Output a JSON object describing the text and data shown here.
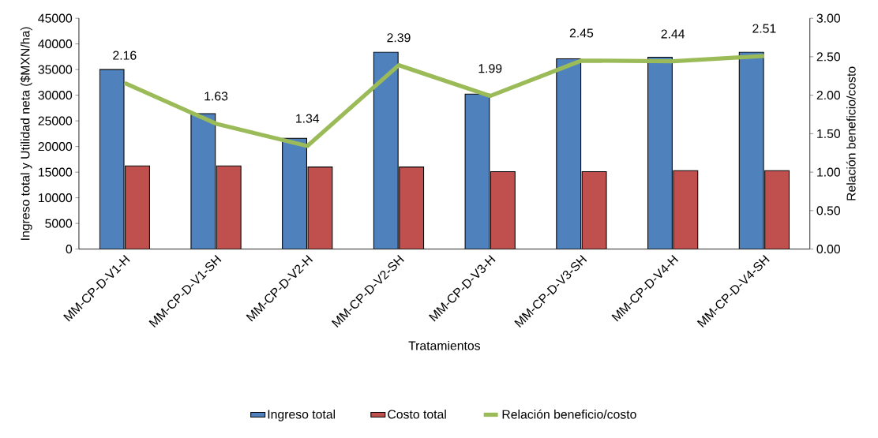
{
  "chart_data": {
    "type": "bar",
    "xlabel": "Tratamientos",
    "ylabel": "Ingreso total y Utilidad neta ($MXN/ha)",
    "y2label": "Relación beneficio/costo",
    "categories": [
      "MM-CP-D-V1-H",
      "MM-CP-D-V1-SH",
      "MM-CP-D-V2-H",
      "MM-CP-D-V2-SH",
      "MM-CP-D-V3-H",
      "MM-CP-D-V3-SH",
      "MM-CP-D-V4-H",
      "MM-CP-D-V4-SH"
    ],
    "series": [
      {
        "name": "Ingreso total",
        "color": "#4f81bd",
        "values": [
          35000,
          26400,
          21600,
          38400,
          30200,
          37100,
          37400,
          38400
        ]
      },
      {
        "name": "Costo  total",
        "color": "#c0504d",
        "values": [
          16200,
          16200,
          16000,
          16000,
          15100,
          15100,
          15300,
          15300
        ]
      },
      {
        "name": "Relación beneficio/costo",
        "type": "line",
        "axis": "y2",
        "color": "#9bbb59",
        "marker": "none",
        "data_labels": true,
        "values": [
          2.16,
          1.63,
          1.34,
          2.39,
          1.99,
          2.45,
          2.44,
          2.51
        ]
      }
    ],
    "ylim": [
      0,
      45000
    ],
    "yticks": [
      0,
      5000,
      10000,
      15000,
      20000,
      25000,
      30000,
      35000,
      40000,
      45000
    ],
    "y2lim": [
      0,
      3
    ],
    "y2ticks": [
      {
        "value": 0,
        "label": "0.00"
      },
      {
        "value": 0.5,
        "label": "0.50"
      },
      {
        "value": 1,
        "label": "1.00"
      },
      {
        "value": 1.5,
        "label": "1.50"
      },
      {
        "value": 2,
        "label": "2.00"
      },
      {
        "value": 2.5,
        "label": "2.50"
      },
      {
        "value": 3,
        "label": "3.00"
      }
    ],
    "grid": false,
    "legend": "bottom"
  }
}
